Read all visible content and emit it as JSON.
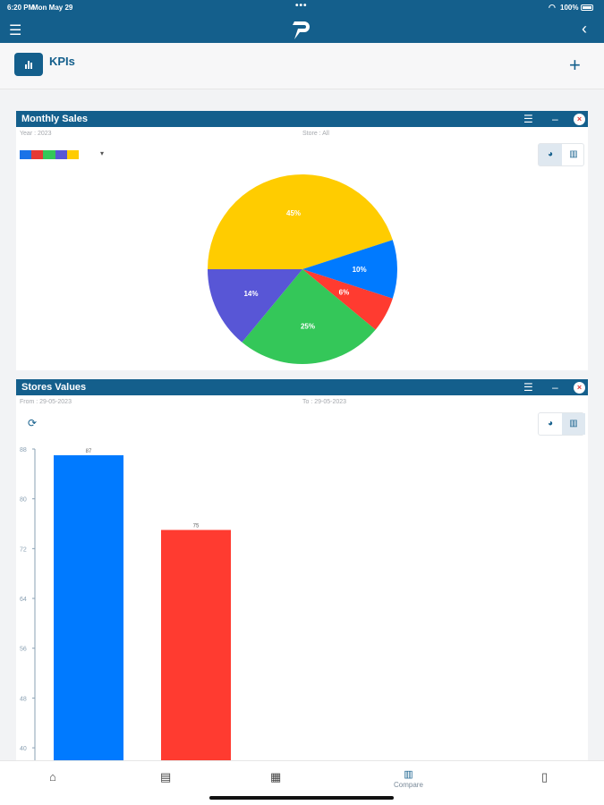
{
  "status_bar": {
    "time": "6:20 PM",
    "date": "Mon May 29",
    "battery": "100%"
  },
  "header": {
    "title": "KPIs"
  },
  "monthly_sales": {
    "title": "Monthly Sales",
    "year": "Year : 2023",
    "store": "Store : All",
    "swatch_colors": [
      "#1a73e8",
      "#e53935",
      "#34c759",
      "#5856d6",
      "#ffcc00"
    ],
    "chart_data": {
      "type": "pie",
      "slices": [
        {
          "label": "45%",
          "value": 45,
          "color": "#ffcc00"
        },
        {
          "label": "10%",
          "value": 10,
          "color": "#007aff"
        },
        {
          "label": "6%",
          "value": 6,
          "color": "#ff3b30"
        },
        {
          "label": "25%",
          "value": 25,
          "color": "#34c759"
        },
        {
          "label": "14%",
          "value": 14,
          "color": "#5856d6"
        }
      ]
    }
  },
  "stores_values": {
    "title": "Stores Values",
    "from": "From : 29-05-2023",
    "to": "To : 29-05-2023",
    "chart_data": {
      "type": "bar",
      "values": [
        87,
        75
      ],
      "data_labels": [
        "87",
        "75"
      ],
      "colors": [
        "#007aff",
        "#ff3b30"
      ],
      "y_ticks": [
        "88",
        "80",
        "72",
        "64",
        "56",
        "48",
        "40"
      ],
      "ylim": [
        38,
        88
      ]
    }
  },
  "tabbar": {
    "compare_label": "Compare"
  },
  "colors": {
    "brand": "#145f8c"
  }
}
